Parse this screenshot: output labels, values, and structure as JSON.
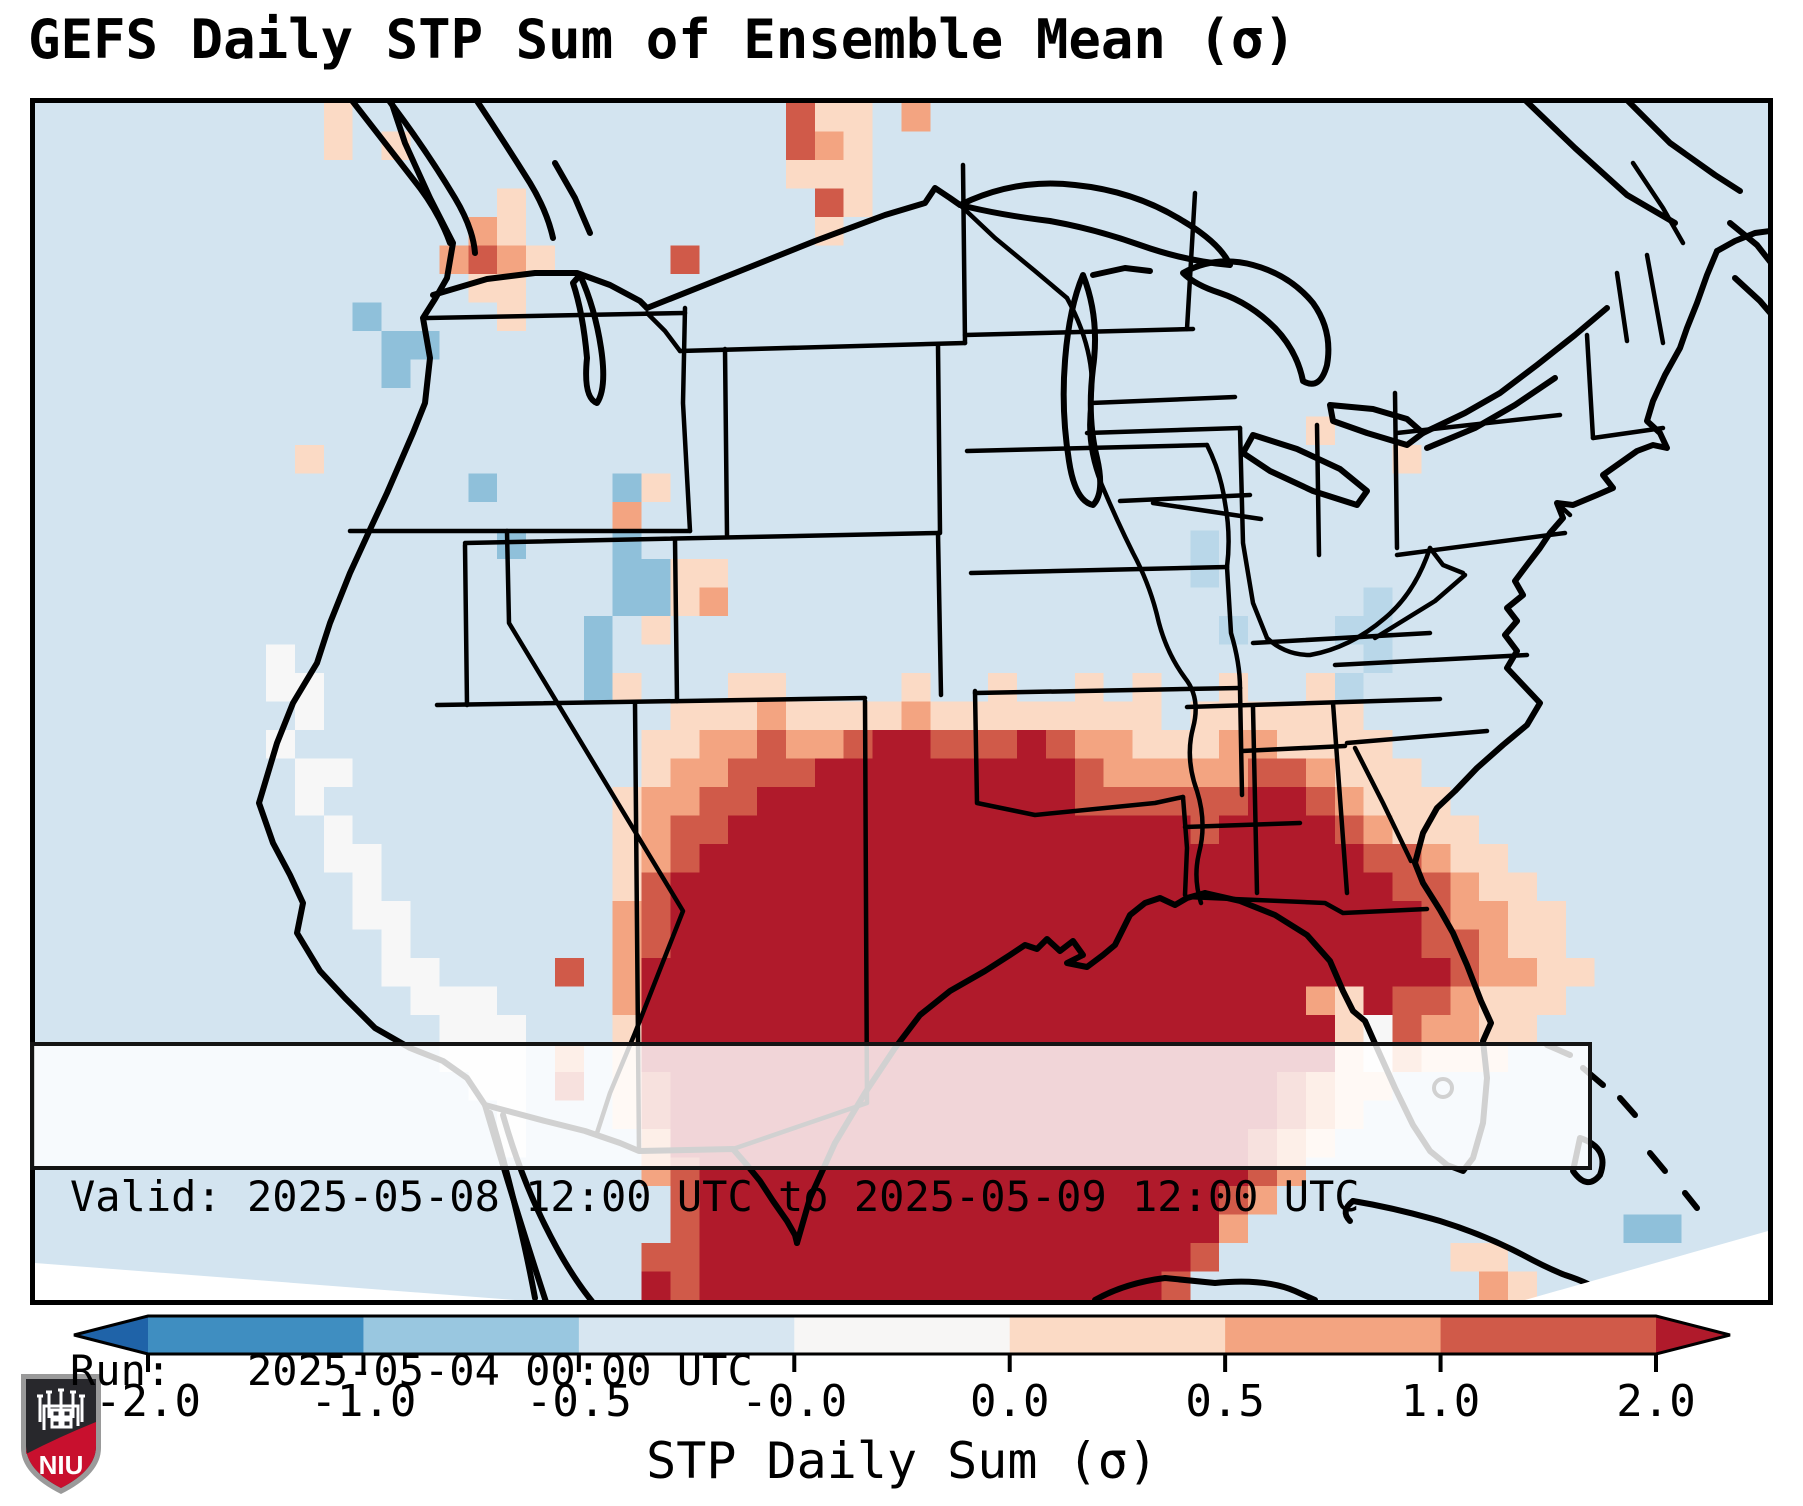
{
  "title": "GEFS Daily STP Sum of Ensemble Mean (σ)",
  "info_box": {
    "valid_line": "Valid: 2025-05-08 12:00 UTC to 2025-05-09 12:00 UTC",
    "run_line": "Run:   2025-05-04 00:00 UTC"
  },
  "colorbar": {
    "label": "STP Daily Sum (σ)",
    "tick_labels": [
      "-2.0",
      "-1.0",
      "-0.5",
      "-0.0",
      "0.0",
      "0.5",
      "1.0",
      "2.0"
    ],
    "segment_colors": [
      "#3f8ec1",
      "#99c7e0",
      "#d7e6f1",
      "#f7f6f5",
      "#fbdac5",
      "#f3a481",
      "#d05a49"
    ],
    "extend_left_color": "#1f63a8",
    "extend_right_color": "#b01a2b",
    "outline_color": "#000000"
  },
  "map": {
    "background_color": "#d3e4f0",
    "line_color": "#000000",
    "frame_color": "#000000"
  },
  "logo": {
    "text": "NIU",
    "shield_dark": "#28282c",
    "shield_red": "#c8102e",
    "shield_border": "#9a9a9a"
  },
  "chart_data": {
    "type": "heatmap",
    "title": "GEFS Daily STP Sum of Ensemble Mean (σ)",
    "colorbar_label": "STP Daily Sum (σ)",
    "colorbar_ticks": [
      -2.0,
      -1.0,
      -0.5,
      -0.0,
      0.0,
      0.5,
      1.0,
      2.0
    ],
    "valid": "2025-05-08 12:00 UTC to 2025-05-09 12:00 UTC",
    "run": "2025-05-04 00:00 UTC",
    "region": "CONUS / northern Mexico / Gulf of Mexico",
    "maximum_region": "Gulf of Mexico, Louisiana, southern Mississippi/Alabama and offshore Georgia/South Carolina at >= +2.0 sigma",
    "palette": {
      ".": "",
      "0": "#f7f7f7",
      "a": "#fbdac5",
      "b": "#f3a481",
      "c": "#d05a49",
      "d": "#b01a2b",
      "B": "#8fc0da",
      "L": "#b9d7e9"
    },
    "palette_values_sigma": {
      "0": "0.0 to -0.0",
      "a": "0.0 to 0.5",
      "b": "0.5 to 1.0",
      "c": "1.0 to 2.0",
      "d": ">= 2.0",
      "B": "-1.0 to -0.5",
      "L": "-0.5 (weak negative patch)",
      ".": "-0.5 to -0.0 (background)"
    },
    "grid_cols": 60,
    "grid_rows_count": 42,
    "grid_rows": [
      "..........a...............caa.b.............................",
      "..........a.a.............cba...............................",
      "..........................aaa...............................",
      "................a..........ca...............................",
      "...............ba..........a................................",
      "..............bcba....c.....................................",
      "...............aa...........................................",
      "...........B....a...........................................",
      "............BB..............................................",
      "............B...............................................",
      "............................................................",
      "............................................a...............",
      ".........a.....................................a............",
      "...............B....Ba......................................",
      "....................b.......................................",
      "................B...B...................L...................",
      "....................BBaa................L...................",
      "....................BBab......................L.............",
      "...................B.a...................L...LL.............",
      "........0..........B..........................L.............",
      "........00.........Ba...aa....a..a..a.a..a..aL..............",
      ".........0............aaabaaaabaaaaaaaa.aaaaaa..............",
      "........0............aabbcbbcddcccdcbbaaabbaaaa.............",
      ".........00..........abbcccdddddddddcbbbbbccbaaa............",
      ".........0..........abbccdddddddddddccccccddcbaaa...........",
      "..........0.........abccddddddddddddddddcddddcbaaa..........",
      "..........00........abcdddddddddddddddddddddddccbaa.........",
      "...........0........acdddddddddddddddddddddddddccbaa........",
      "...........00.......bcddddddddddddddddddddddddddcbbaa.......",
      "............0.......bcddddddddddddddddddddddddddccbaa.......",
      "............00....c.bddddddddddddddddddddddddddddcbbaa......",
      ".............000....bdddddddddddddddddddddddbadccbaaa.......",
      "..............000...adddddddddddddddddddddddda0cbbaa........",
      "..............000.b.adddddddddddddddddddddddda0baaa.........",
      "...............00.c.acdddddddddddddddddddddcbaa.............",
      "................0...acdddddddddddddddddddddcba..............",
      "................0....bddddddddddddddddddddcba...............",
      ".....................bcdddddddddddddddddddcb................",
      "......................cddddddddddddddddddcb.................",
      "......................cddddddddddddddddddb.............BB...",
      ".....................ccdddddddddddddddddc........aa.........",
      ".....................dcddddddddddddddddc..........ba........"
    ]
  }
}
